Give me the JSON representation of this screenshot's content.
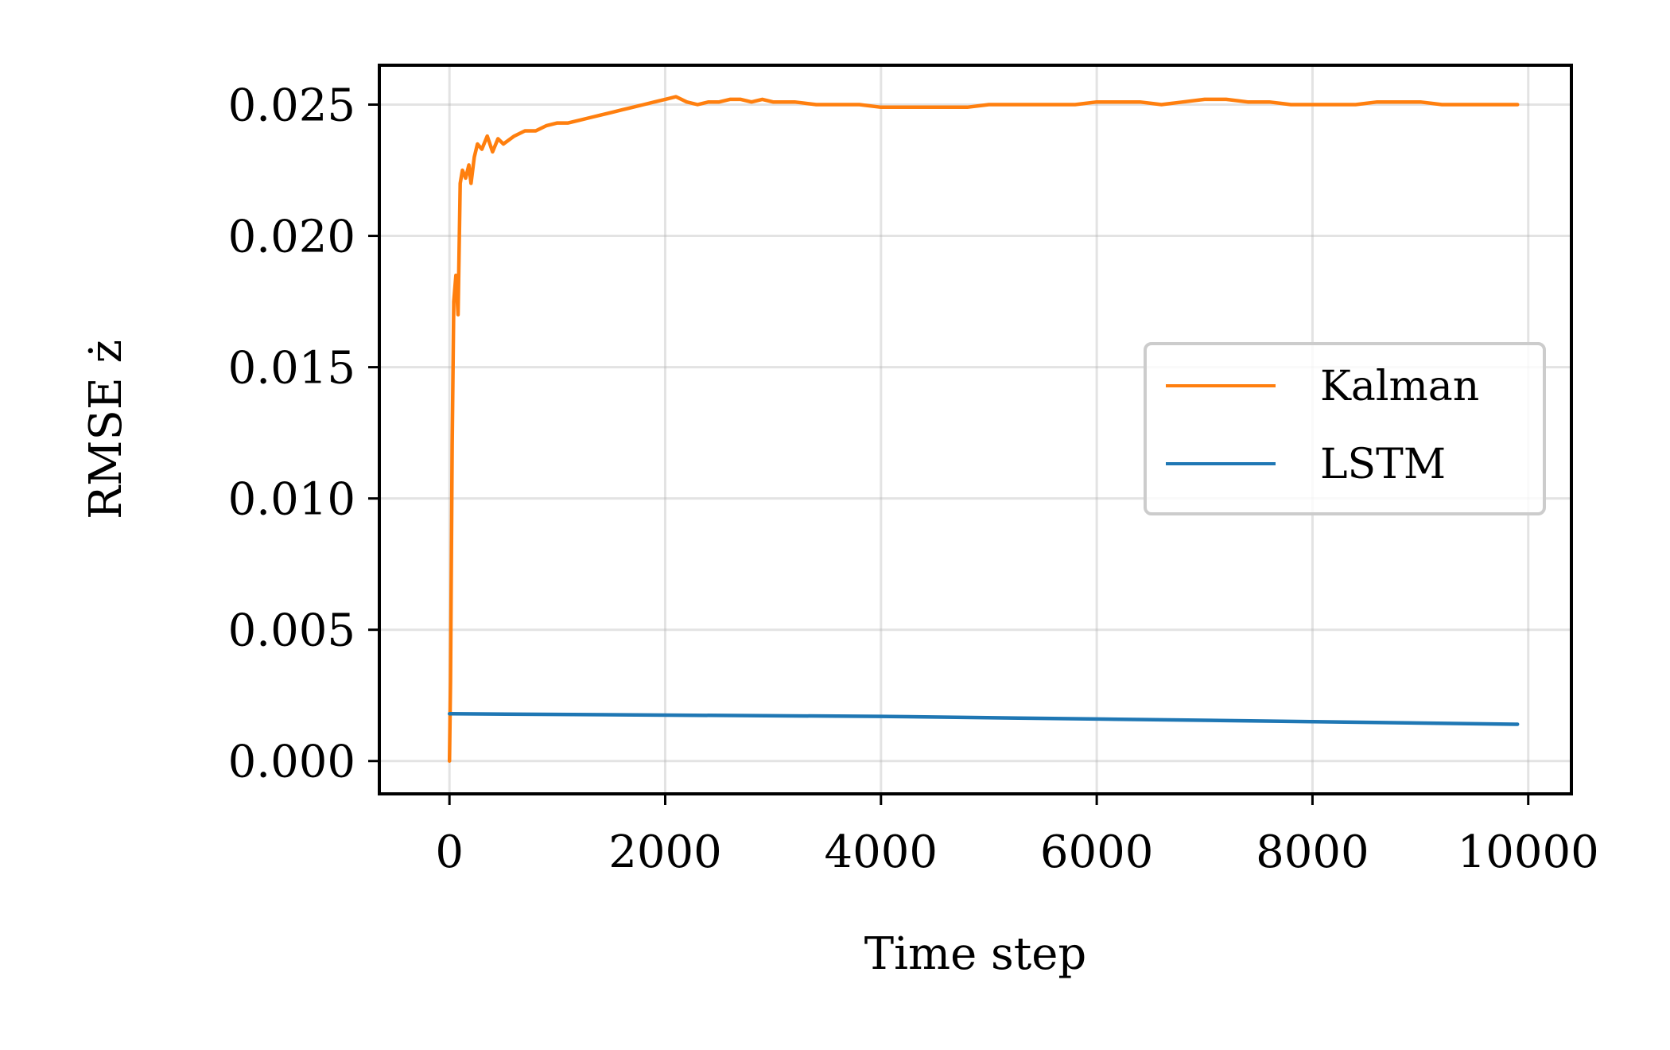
{
  "chart_data": {
    "type": "line",
    "xlabel": "Time step",
    "ylabel": "RMSE ż",
    "xlim": [
      -650,
      10400
    ],
    "ylim": [
      -0.00125,
      0.0265
    ],
    "xticks": [
      0,
      2000,
      4000,
      6000,
      8000,
      10000
    ],
    "xtick_labels": [
      "0",
      "2000",
      "4000",
      "6000",
      "8000",
      "10000"
    ],
    "yticks": [
      0.0,
      0.005,
      0.01,
      0.015,
      0.02,
      0.025
    ],
    "ytick_labels": [
      "0.000",
      "0.005",
      "0.010",
      "0.015",
      "0.020",
      "0.025"
    ],
    "grid": true,
    "legend_position": "center-right",
    "series": [
      {
        "name": "Kalman",
        "color": "#ff7f0e",
        "x": [
          0,
          10,
          25,
          40,
          60,
          80,
          100,
          120,
          150,
          180,
          200,
          230,
          260,
          300,
          350,
          400,
          450,
          500,
          600,
          700,
          800,
          900,
          1000,
          1100,
          1200,
          1300,
          1400,
          1500,
          1600,
          1700,
          1800,
          1900,
          2000,
          2100,
          2200,
          2300,
          2400,
          2500,
          2600,
          2700,
          2800,
          2900,
          3000,
          3200,
          3400,
          3600,
          3800,
          4000,
          4200,
          4400,
          4600,
          4800,
          5000,
          5200,
          5400,
          5600,
          5800,
          6000,
          6200,
          6400,
          6600,
          6800,
          7000,
          7200,
          7400,
          7600,
          7800,
          8000,
          8200,
          8400,
          8600,
          8800,
          9000,
          9200,
          9400,
          9600,
          9900
        ],
        "values": [
          0.0,
          0.003,
          0.012,
          0.0175,
          0.0185,
          0.017,
          0.022,
          0.0225,
          0.0222,
          0.0227,
          0.022,
          0.023,
          0.0235,
          0.0233,
          0.0238,
          0.0232,
          0.0237,
          0.0235,
          0.0238,
          0.024,
          0.024,
          0.0242,
          0.0243,
          0.0243,
          0.0244,
          0.0245,
          0.0246,
          0.0247,
          0.0248,
          0.0249,
          0.025,
          0.0251,
          0.0252,
          0.0253,
          0.0251,
          0.025,
          0.0251,
          0.0251,
          0.0252,
          0.0252,
          0.0251,
          0.0252,
          0.0251,
          0.0251,
          0.025,
          0.025,
          0.025,
          0.0249,
          0.0249,
          0.0249,
          0.0249,
          0.0249,
          0.025,
          0.025,
          0.025,
          0.025,
          0.025,
          0.0251,
          0.0251,
          0.0251,
          0.025,
          0.0251,
          0.0252,
          0.0252,
          0.0251,
          0.0251,
          0.025,
          0.025,
          0.025,
          0.025,
          0.0251,
          0.0251,
          0.0251,
          0.025,
          0.025,
          0.025,
          0.025
        ]
      },
      {
        "name": "LSTM",
        "color": "#1f77b4",
        "x": [
          0,
          2000,
          4000,
          6000,
          8000,
          9900
        ],
        "values": [
          0.0018,
          0.00175,
          0.0017,
          0.0016,
          0.0015,
          0.0014
        ]
      }
    ]
  }
}
